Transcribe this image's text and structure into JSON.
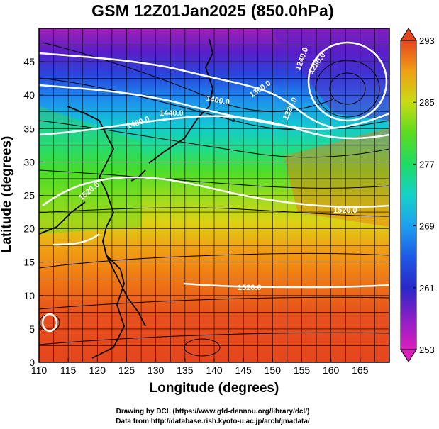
{
  "title": "GSM 12Z01Jan2025 (850.0hPa)",
  "x_label": "Longitude (degrees)",
  "y_label": "Latitude  (degrees)",
  "credit_line1": "Drawing by DCL (https://www.gfd-dennou.org/library/dcl/)",
  "credit_line2": "Data from http://database.rish.kyoto-u.ac.jp/arch/jmadata/",
  "x_ticks": [
    "110",
    "115",
    "120",
    "125",
    "130",
    "135",
    "140",
    "145",
    "150",
    "155",
    "160",
    "165"
  ],
  "y_ticks": [
    "0",
    "5",
    "10",
    "15",
    "20",
    "25",
    "30",
    "35",
    "40",
    "45"
  ],
  "colorbar_ticks": [
    "253",
    "261",
    "269",
    "277",
    "285",
    "293"
  ],
  "contour_labels": [
    "1240.0",
    "1280.0",
    "1320.0",
    "1360.0",
    "1400.0",
    "1440.0",
    "1480.0",
    "1520.0",
    "1520.0",
    "1520.0"
  ],
  "chart_data": {
    "type": "heatmap",
    "variable": "temperature (K) with geopotential height contours (m) and streamlines",
    "x_range": [
      110,
      170
    ],
    "y_range": [
      0,
      50
    ],
    "colorbar_range": [
      253,
      293
    ],
    "contours": [
      {
        "level": 1240.0
      },
      {
        "level": 1280.0
      },
      {
        "level": 1320.0
      },
      {
        "level": 1360.0
      },
      {
        "level": 1400.0
      },
      {
        "level": 1440.0
      },
      {
        "level": 1480.0
      },
      {
        "level": 1520.0
      }
    ]
  },
  "colors": {
    "palette": [
      "#d21eb4",
      "#8c1ec8",
      "#3c14c8",
      "#1e3cdc",
      "#1e82f0",
      "#14c8dc",
      "#1edc8c",
      "#3cdc28",
      "#96dc1e",
      "#dcd214",
      "#f0a014",
      "#f06e14",
      "#e6461e",
      "#dc3c28"
    ]
  }
}
